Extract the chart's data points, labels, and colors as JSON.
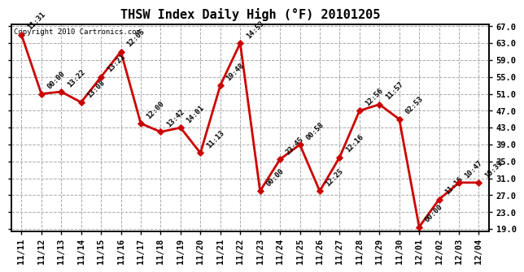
{
  "title": "THSW Index Daily High (°F) 20101205",
  "copyright": "Copyright 2010 Cartronics.com",
  "x_labels": [
    "11/11",
    "11/12",
    "11/13",
    "11/14",
    "11/15",
    "11/16",
    "11/17",
    "11/18",
    "11/19",
    "11/20",
    "11/21",
    "11/22",
    "11/23",
    "11/24",
    "11/25",
    "11/26",
    "11/27",
    "11/28",
    "11/29",
    "11/30",
    "12/01",
    "12/02",
    "12/03",
    "12/04"
  ],
  "y_values": [
    65.0,
    51.0,
    51.5,
    49.0,
    55.0,
    61.0,
    44.0,
    42.0,
    43.0,
    37.0,
    53.0,
    63.0,
    28.0,
    35.5,
    39.0,
    28.0,
    36.0,
    47.0,
    48.5,
    45.0,
    19.5,
    26.0,
    30.0,
    30.0
  ],
  "point_labels": [
    "11:31",
    "00:00",
    "13:22",
    "13:08",
    "13:21",
    "12:05",
    "12:00",
    "13:42",
    "14:01",
    "11:13",
    "19:48",
    "14:53",
    "00:00",
    "23:45",
    "00:58",
    "12:25",
    "12:16",
    "12:56",
    "11:57",
    "02:53",
    "00:00",
    "11:16",
    "10:47",
    "10:31"
  ],
  "line_color": "#cc0000",
  "marker_color": "#cc0000",
  "bg_color": "#ffffff",
  "plot_bg_color": "#ffffff",
  "grid_color": "#aaaaaa",
  "ylim_min": 19.0,
  "ylim_max": 67.0,
  "yticks": [
    19.0,
    23.0,
    27.0,
    31.0,
    35.0,
    39.0,
    43.0,
    47.0,
    51.0,
    55.0,
    59.0,
    63.0,
    67.0
  ],
  "title_fontsize": 11,
  "label_fontsize": 6.5,
  "tick_fontsize": 7.5,
  "copyright_fontsize": 6.5
}
